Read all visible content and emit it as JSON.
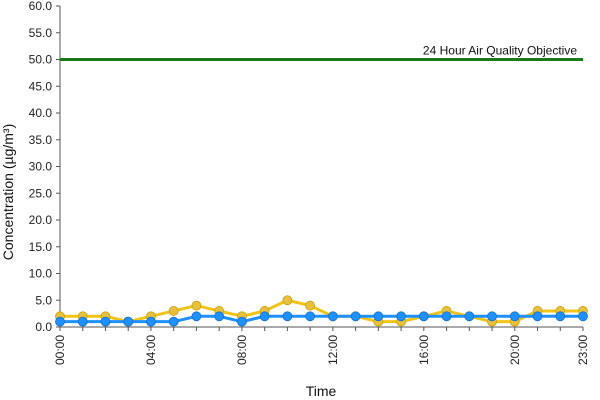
{
  "chart_data": {
    "type": "line",
    "title": "",
    "xlabel": "Time",
    "ylabel": "Concentration (µg/m³)",
    "ylim": [
      0,
      60
    ],
    "y_ticks": [
      "0.0",
      "5.0",
      "10.0",
      "15.0",
      "20.0",
      "25.0",
      "30.0",
      "35.0",
      "40.0",
      "45.0",
      "50.0",
      "55.0",
      "60.0"
    ],
    "x_tick_labels": [
      "00:00",
      "04:00",
      "08:00",
      "12:00",
      "16:00",
      "20:00",
      "23:00"
    ],
    "x_tick_hours": [
      0,
      4,
      8,
      12,
      16,
      20,
      23
    ],
    "x_hours": [
      0,
      1,
      2,
      3,
      4,
      5,
      6,
      7,
      8,
      9,
      10,
      11,
      12,
      13,
      14,
      15,
      16,
      17,
      18,
      19,
      20,
      21,
      22,
      23
    ],
    "series": [
      {
        "color": "#f0c419",
        "marker_color": "#e8c040",
        "values": [
          2,
          2,
          2,
          1,
          2,
          3,
          4,
          3,
          2,
          3,
          5,
          4,
          2,
          2,
          1,
          1,
          2,
          3,
          2,
          1,
          1,
          3,
          3,
          3
        ]
      },
      {
        "color": "#1e90ff",
        "marker_color": "#1e90ff",
        "values": [
          1,
          1,
          1,
          1,
          1,
          1,
          2,
          2,
          1,
          2,
          2,
          2,
          2,
          2,
          2,
          2,
          2,
          2,
          2,
          2,
          2,
          2,
          2,
          2
        ]
      }
    ],
    "objective": {
      "label": "24 Hour Air Quality Objective",
      "value": 50,
      "color": "#1a7a1a"
    },
    "grid": false
  }
}
